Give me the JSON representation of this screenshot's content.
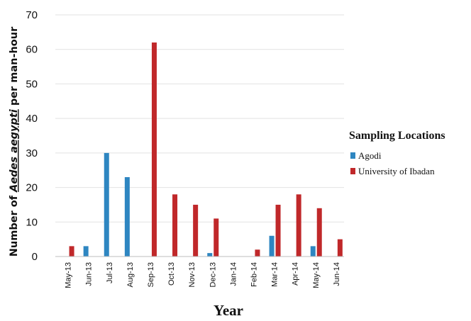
{
  "chart_data": {
    "type": "bar",
    "xlabel": "Year",
    "ylabel_prefix": "Number of ",
    "ylabel_italic": "Aedes aegypti",
    "ylabel_suffix": " per man-hour",
    "ylim": [
      0,
      70
    ],
    "yticks": [
      0,
      10,
      20,
      30,
      40,
      50,
      60,
      70
    ],
    "grid": "horizontal",
    "legend_position": "right",
    "legend_title": "Sampling Locations",
    "categories": [
      "May-13",
      "Jun-13",
      "Jul-13",
      "Aug-13",
      "Sep-13",
      "Oct-13",
      "Nov-13",
      "Dec-13",
      "Jan-14",
      "Feb-14",
      "Mar-14",
      "Apr-14",
      "May-14",
      "Jun-14"
    ],
    "series": [
      {
        "name": "Agodi",
        "color": "#2E86C1",
        "values": [
          0,
          3,
          30,
          23,
          0,
          0,
          0,
          1,
          0,
          0,
          6,
          0,
          3,
          0
        ]
      },
      {
        "name": "University of Ibadan",
        "color": "#C0282A",
        "values": [
          3,
          0,
          0,
          0,
          62,
          18,
          15,
          11,
          0,
          2,
          15,
          18,
          14,
          5
        ]
      }
    ]
  }
}
